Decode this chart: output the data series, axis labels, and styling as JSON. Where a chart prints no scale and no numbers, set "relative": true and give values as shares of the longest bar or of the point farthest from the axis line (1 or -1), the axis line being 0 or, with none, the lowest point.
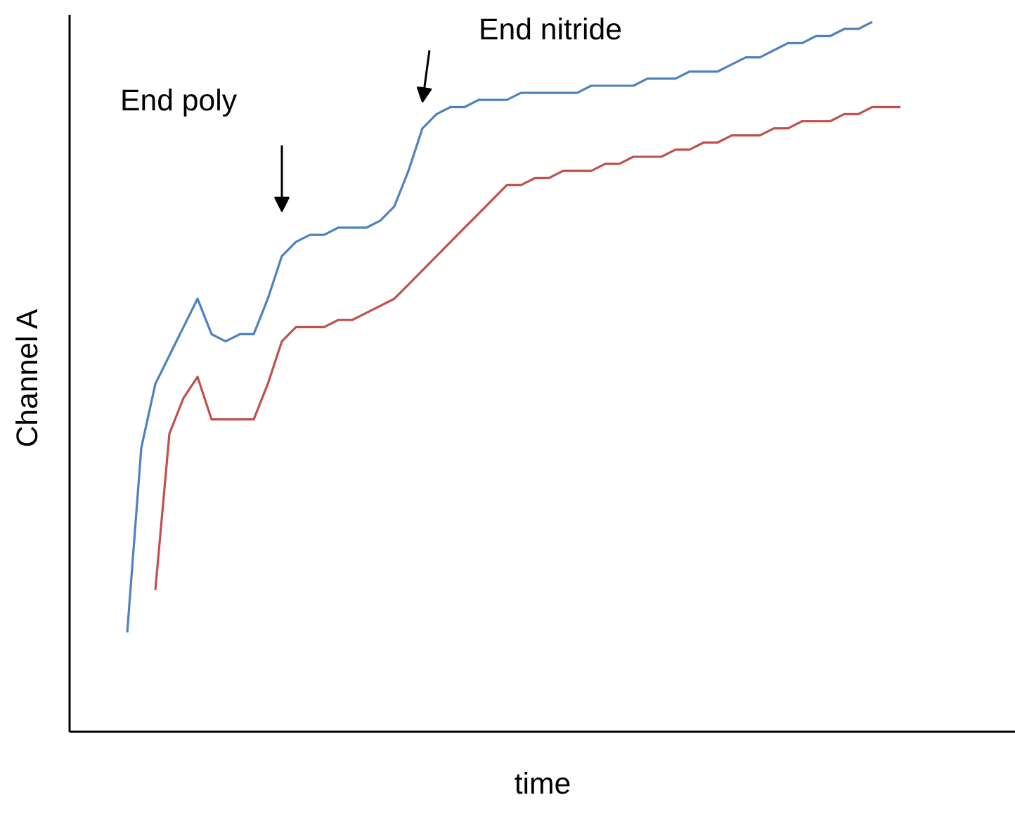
{
  "chart_data": {
    "type": "line",
    "relative": true,
    "xlabel": "time",
    "ylabel": "Channel  A",
    "categories": [
      null,
      null,
      null,
      null,
      null,
      null,
      null,
      null,
      null,
      null,
      null,
      null,
      null,
      null,
      null,
      null,
      null,
      null,
      null,
      null,
      null,
      null,
      null,
      null,
      null,
      null,
      null,
      null,
      null,
      null,
      null,
      null,
      null,
      null,
      null,
      null,
      null,
      null,
      null,
      null,
      null,
      null,
      null,
      null,
      null,
      null,
      null,
      null,
      null,
      null,
      null,
      null,
      null,
      null,
      null,
      null
    ],
    "series": [
      {
        "color": "#4f81bd",
        "values": [
          0.14,
          0.4,
          0.49,
          0.53,
          0.57,
          0.61,
          0.56,
          0.55,
          0.56,
          0.56,
          0.61,
          0.67,
          0.69,
          0.7,
          0.7,
          0.71,
          0.71,
          0.71,
          0.72,
          0.74,
          0.79,
          0.85,
          0.87,
          0.88,
          0.88,
          0.89,
          0.89,
          0.89,
          0.9,
          0.9,
          0.9,
          0.9,
          0.9,
          0.91,
          0.91,
          0.91,
          0.91,
          0.92,
          0.92,
          0.92,
          0.93,
          0.93,
          0.93,
          0.94,
          0.95,
          0.95,
          0.96,
          0.97,
          0.97,
          0.98,
          0.98,
          0.99,
          0.99,
          1.0,
          null,
          null
        ]
      },
      {
        "color": "#c0504d",
        "values": [
          null,
          null,
          0.2,
          0.42,
          0.47,
          0.5,
          0.44,
          0.44,
          0.44,
          0.44,
          0.49,
          0.55,
          0.57,
          0.57,
          0.57,
          0.58,
          0.58,
          0.59,
          0.6,
          0.61,
          0.63,
          0.65,
          0.67,
          0.69,
          0.71,
          0.73,
          0.75,
          0.77,
          0.77,
          0.78,
          0.78,
          0.79,
          0.79,
          0.79,
          0.8,
          0.8,
          0.81,
          0.81,
          0.81,
          0.82,
          0.82,
          0.83,
          0.83,
          0.84,
          0.84,
          0.84,
          0.85,
          0.85,
          0.86,
          0.86,
          0.86,
          0.87,
          0.87,
          0.88,
          0.88,
          0.88
        ]
      }
    ],
    "annotations": [
      "End poly",
      "End nitride"
    ]
  }
}
